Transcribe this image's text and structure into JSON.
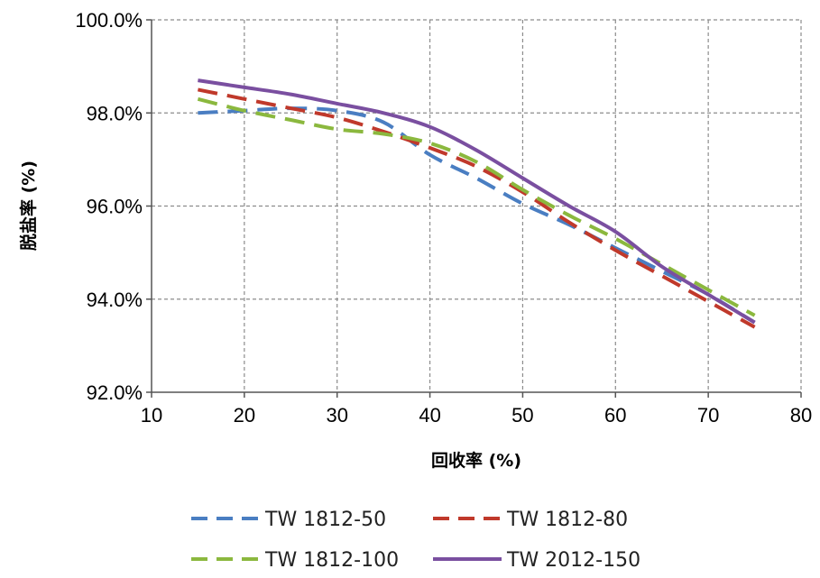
{
  "chart_data": {
    "type": "line",
    "xlabel": "回收率 (%)",
    "ylabel": "脱盐率 (%)",
    "xlim": [
      10,
      80
    ],
    "ylim": [
      92,
      100
    ],
    "x_ticks": [
      10,
      20,
      30,
      40,
      50,
      60,
      70,
      80
    ],
    "y_ticks": [
      92,
      94,
      96,
      98,
      100
    ],
    "y_tick_format": "percent_1dp",
    "grid": true,
    "legend_position": "bottom",
    "series": [
      {
        "name": "TW 1812-50",
        "color": "#4A7EC2",
        "style": "dashed",
        "points": [
          [
            15,
            98.0
          ],
          [
            20,
            98.05
          ],
          [
            25,
            98.1
          ],
          [
            30,
            98.05
          ],
          [
            35,
            97.8
          ],
          [
            40,
            97.1
          ],
          [
            45,
            96.6
          ],
          [
            50,
            96.05
          ],
          [
            55,
            95.6
          ],
          [
            60,
            95.1
          ],
          [
            65,
            94.6
          ],
          [
            70,
            94.1
          ],
          [
            75,
            93.5
          ]
        ]
      },
      {
        "name": "TW 1812-80",
        "color": "#C0392B",
        "style": "dashed",
        "points": [
          [
            15,
            98.5
          ],
          [
            20,
            98.3
          ],
          [
            25,
            98.1
          ],
          [
            30,
            97.9
          ],
          [
            35,
            97.6
          ],
          [
            40,
            97.25
          ],
          [
            45,
            96.85
          ],
          [
            50,
            96.3
          ],
          [
            55,
            95.65
          ],
          [
            60,
            95.05
          ],
          [
            65,
            94.5
          ],
          [
            70,
            93.95
          ],
          [
            75,
            93.4
          ]
        ]
      },
      {
        "name": "TW 1812-100",
        "color": "#8BB83E",
        "style": "dashed",
        "points": [
          [
            15,
            98.3
          ],
          [
            20,
            98.05
          ],
          [
            25,
            97.85
          ],
          [
            30,
            97.65
          ],
          [
            35,
            97.55
          ],
          [
            40,
            97.35
          ],
          [
            45,
            96.95
          ],
          [
            50,
            96.35
          ],
          [
            55,
            95.8
          ],
          [
            60,
            95.3
          ],
          [
            65,
            94.75
          ],
          [
            70,
            94.2
          ],
          [
            75,
            93.65
          ]
        ]
      },
      {
        "name": "TW 2012-150",
        "color": "#7A4FA0",
        "style": "solid",
        "points": [
          [
            15,
            98.7
          ],
          [
            20,
            98.55
          ],
          [
            25,
            98.4
          ],
          [
            30,
            98.2
          ],
          [
            35,
            98.0
          ],
          [
            40,
            97.7
          ],
          [
            45,
            97.2
          ],
          [
            50,
            96.6
          ],
          [
            55,
            96.0
          ],
          [
            60,
            95.45
          ],
          [
            65,
            94.7
          ],
          [
            70,
            94.1
          ],
          [
            75,
            93.5
          ]
        ]
      }
    ]
  }
}
